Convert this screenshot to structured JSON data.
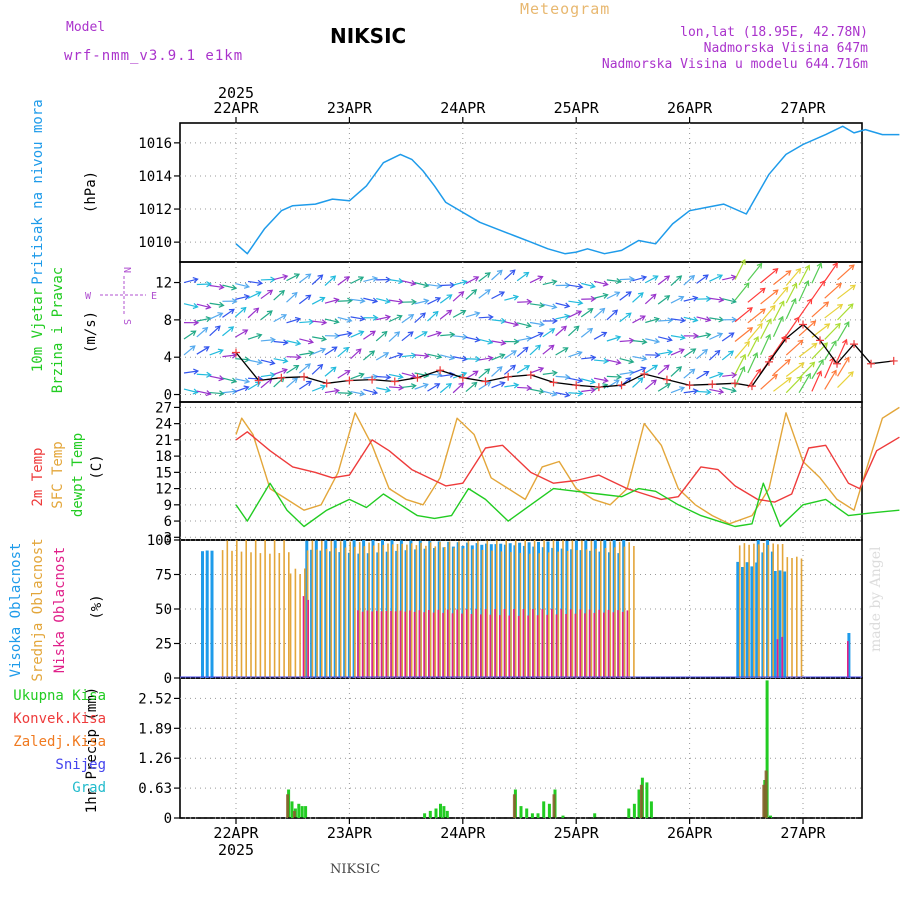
{
  "header": {
    "model_label": "Model",
    "model_value": "wrf-nmm_v3.9.1  e1km",
    "station": "NIKSIC",
    "product": "Meteogram",
    "lonlat": "lon,lat (18.95E, 42.78N)",
    "altitude": "Nadmorska Visina 647m",
    "model_altitude": "Nadmorska Visina u modelu 644.716m",
    "year": "2025",
    "footer_station": "NIKSIC",
    "watermark": "made by Angel"
  },
  "colors": {
    "pressure": "#1e9bea",
    "wind_label": "#22cc22",
    "temp2m": "#ee3b3b",
    "sfc": "#e3a63a",
    "dew": "#22cc22",
    "high_cloud": "#1e9bea",
    "mid_cloud": "#e3a63a",
    "low_cloud": "#e0208a",
    "total_precip": "#22cc22",
    "conv_precip": "#ee3b3b",
    "frozen_precip": "#f07a20",
    "snow": "#4444ee",
    "hail": "#22bbcc",
    "header_purple": "#aa33cc",
    "header_orange": "#e8b870"
  },
  "chart_data": [
    {
      "type": "line",
      "panel": "pressure",
      "x_dates": [
        "22APR",
        "23APR",
        "24APR",
        "25APR",
        "26APR",
        "27APR"
      ],
      "ylabel": [
        "Pritisak na nivou mora",
        "(hPa)"
      ],
      "ylim": [
        1008.8,
        1017.2
      ],
      "yticks": [
        1010,
        1012,
        1014,
        1016
      ],
      "grid": true,
      "series": [
        {
          "x": [
            0,
            0.1,
            0.25,
            0.4,
            0.5,
            0.7,
            0.85,
            1.0,
            1.15,
            1.3,
            1.45,
            1.55,
            1.65,
            1.75,
            1.85,
            1.95,
            2.05,
            2.15,
            2.3,
            2.45,
            2.6,
            2.75,
            2.9,
            3.0,
            3.1,
            3.25,
            3.4,
            3.55,
            3.7,
            3.85,
            4.0,
            4.15,
            4.3,
            4.5,
            4.7,
            4.85,
            5.0,
            5.2,
            5.35,
            5.45,
            5.55,
            5.7,
            5.85
          ],
          "values": [
            1009.9,
            1009.3,
            1010.8,
            1011.9,
            1012.2,
            1012.3,
            1012.6,
            1012.5,
            1013.4,
            1014.8,
            1015.3,
            1015.0,
            1014.3,
            1013.4,
            1012.4,
            1012.0,
            1011.6,
            1011.2,
            1010.8,
            1010.4,
            1010.0,
            1009.6,
            1009.3,
            1009.4,
            1009.6,
            1009.3,
            1009.5,
            1010.1,
            1009.9,
            1011.1,
            1011.9,
            1012.1,
            1012.3,
            1011.7,
            1014.1,
            1015.3,
            1015.9,
            1016.5,
            1017.0,
            1016.6,
            1016.8,
            1016.5,
            1016.5
          ]
        }
      ]
    },
    {
      "type": "line",
      "panel": "wind",
      "x_dates": [
        "22APR",
        "23APR",
        "24APR",
        "25APR",
        "26APR",
        "27APR"
      ],
      "ylabel": [
        "10m Vjetar",
        "Brzina i Pravac",
        "(m/s)"
      ],
      "compass": [
        "N",
        "E",
        "S",
        "W"
      ],
      "ylim": [
        -0.8,
        14.2
      ],
      "yticks": [
        0,
        4,
        8,
        12
      ],
      "grid": true,
      "series": [
        {
          "name": "speed",
          "x": [
            0,
            0.2,
            0.4,
            0.6,
            0.8,
            1.0,
            1.2,
            1.4,
            1.6,
            1.8,
            2.0,
            2.2,
            2.4,
            2.6,
            2.8,
            3.0,
            3.2,
            3.4,
            3.6,
            3.8,
            4.0,
            4.2,
            4.4,
            4.55,
            4.7,
            4.85,
            5.0,
            5.15,
            5.3,
            5.45,
            5.6,
            5.8
          ],
          "values": [
            4.5,
            1.5,
            1.8,
            1.9,
            1.2,
            1.5,
            1.6,
            1.4,
            1.8,
            2.6,
            1.8,
            1.4,
            1.9,
            2.1,
            1.3,
            1.0,
            0.8,
            1.0,
            2.2,
            1.6,
            1.0,
            1.1,
            1.2,
            0.9,
            3.5,
            6.0,
            7.5,
            5.8,
            3.3,
            5.4,
            3.3,
            3.6
          ]
        }
      ]
    },
    {
      "type": "line",
      "panel": "temperature",
      "x_dates": [
        "22APR",
        "23APR",
        "24APR",
        "25APR",
        "26APR",
        "27APR"
      ],
      "ylabel": [
        "2m Temp",
        "SFC Temp",
        "dewpt Temp",
        "(C)"
      ],
      "ylim": [
        2.5,
        28
      ],
      "yticks": [
        3,
        6,
        9,
        12,
        15,
        18,
        21,
        24,
        27
      ],
      "grid": true,
      "series": [
        {
          "name": "2m Temp",
          "x": [
            0,
            0.1,
            0.3,
            0.5,
            0.7,
            0.85,
            1.0,
            1.2,
            1.35,
            1.55,
            1.7,
            1.85,
            2.0,
            2.2,
            2.35,
            2.6,
            2.8,
            3.0,
            3.2,
            3.45,
            3.6,
            3.75,
            3.9,
            4.1,
            4.25,
            4.4,
            4.6,
            4.75,
            4.9,
            5.05,
            5.2,
            5.4,
            5.5,
            5.65,
            5.85
          ],
          "values": [
            21,
            22.5,
            19,
            16,
            15,
            14,
            14.5,
            21,
            19,
            15.5,
            14,
            12.5,
            13,
            19.5,
            20,
            15,
            13,
            13.5,
            14.5,
            12,
            11,
            10,
            10.5,
            16,
            15.5,
            12.5,
            10,
            9.5,
            11,
            19.5,
            20,
            13,
            12,
            19,
            21.5
          ]
        },
        {
          "name": "SFC Temp",
          "x": [
            0,
            0.05,
            0.15,
            0.3,
            0.45,
            0.6,
            0.75,
            0.9,
            1.05,
            1.2,
            1.35,
            1.5,
            1.65,
            1.8,
            1.95,
            2.1,
            2.25,
            2.4,
            2.55,
            2.7,
            2.85,
            3.0,
            3.15,
            3.3,
            3.45,
            3.6,
            3.75,
            3.9,
            4.05,
            4.2,
            4.35,
            4.55,
            4.7,
            4.85,
            5.0,
            5.15,
            5.3,
            5.45,
            5.55,
            5.7,
            5.85
          ],
          "values": [
            22,
            25,
            22,
            12,
            10,
            8,
            9,
            15,
            26,
            20,
            12,
            10,
            9,
            14,
            25,
            22,
            14,
            12,
            10,
            16,
            17,
            12,
            10,
            9,
            12,
            24,
            20,
            12,
            9,
            7,
            5.5,
            7,
            12,
            26,
            17,
            14,
            10,
            8,
            15,
            25,
            27
          ]
        },
        {
          "name": "dewpt Temp",
          "x": [
            0,
            0.1,
            0.3,
            0.45,
            0.6,
            0.8,
            1.0,
            1.15,
            1.3,
            1.45,
            1.6,
            1.75,
            1.9,
            2.05,
            2.2,
            2.4,
            2.6,
            2.8,
            3.0,
            3.2,
            3.4,
            3.55,
            3.7,
            3.9,
            4.1,
            4.25,
            4.4,
            4.55,
            4.65,
            4.8,
            5.0,
            5.2,
            5.4,
            5.6,
            5.85
          ],
          "values": [
            9,
            6,
            13,
            8,
            5,
            8,
            10,
            8.5,
            11,
            9,
            7,
            6.5,
            7,
            12,
            10,
            6,
            9,
            12,
            11.5,
            11,
            10.5,
            12,
            11.5,
            9,
            7,
            6,
            5,
            5.5,
            13,
            5,
            9,
            10,
            7,
            7.5,
            8
          ]
        }
      ]
    },
    {
      "type": "bar",
      "panel": "clouds",
      "x_dates": [
        "22APR",
        "23APR",
        "24APR",
        "25APR",
        "26APR",
        "27APR"
      ],
      "ylabel": [
        "Visoka Oblacnost",
        "Srednja Oblacnost",
        "Niska Oblacnost",
        "(%)"
      ],
      "ylim": [
        0,
        100
      ],
      "yticks": [
        0,
        25,
        50,
        75,
        100
      ],
      "grid": true,
      "series": [
        {
          "name": "Visoka Oblacnost",
          "segments": [
            [
              0.15,
              0.25,
              95
            ],
            [
              1.07,
              3.9,
              100
            ],
            [
              4.87,
              5.05,
              85
            ],
            [
              5.05,
              5.2,
              100
            ],
            [
              5.2,
              5.3,
              80
            ],
            [
              5.85,
              5.87,
              35
            ]
          ]
        },
        {
          "name": "Srednja Oblacnost",
          "segments": [
            [
              0.32,
              0.92,
              100
            ],
            [
              0.92,
              1.06,
              80
            ],
            [
              1.07,
              3.95,
              100
            ],
            [
              4.88,
              5.05,
              100
            ],
            [
              5.05,
              5.3,
              100
            ],
            [
              5.3,
              5.43,
              90
            ]
          ]
        },
        {
          "name": "Niska Oblacnost",
          "segments": [
            [
              1.02,
              1.07,
              60
            ],
            [
              1.5,
              3.9,
              50
            ],
            [
              5.2,
              5.25,
              30
            ],
            [
              5.82,
              5.84,
              28
            ]
          ]
        }
      ]
    },
    {
      "type": "bar",
      "panel": "precipitation",
      "x_dates": [
        "22APR",
        "23APR",
        "24APR",
        "25APR",
        "26APR",
        "27APR"
      ],
      "ylabel": [
        "1hr Precip (mm)"
      ],
      "legend": [
        "Ukupna Kisa",
        "Konvek.Kisa",
        "Zaledj.Kisa",
        "Snijeg",
        "Grad"
      ],
      "ylim": [
        0,
        2.95
      ],
      "yticks": [
        0,
        0.63,
        1.26,
        1.89,
        2.52
      ],
      "grid": true,
      "series": [
        {
          "name": "Ukupna Kisa",
          "x": [
            0.9,
            0.93,
            0.96,
            0.99,
            1.02,
            1.05,
            2.1,
            2.15,
            2.2,
            2.24,
            2.27,
            2.3,
            2.9,
            2.95,
            3.0,
            3.05,
            3.1,
            3.15,
            3.2,
            3.25,
            3.32,
            3.6,
            3.9,
            3.95,
            3.99,
            4.02,
            4.06,
            4.1,
            5.1,
            5.12,
            5.15
          ],
          "values": [
            0.6,
            0.35,
            0.2,
            0.3,
            0.25,
            0.25,
            0.1,
            0.15,
            0.2,
            0.3,
            0.25,
            0.15,
            0.6,
            0.25,
            0.2,
            0.1,
            0.1,
            0.35,
            0.3,
            0.6,
            0.05,
            0.1,
            0.2,
            0.3,
            0.6,
            0.85,
            0.75,
            0.35,
            0.8,
            2.9,
            0.05
          ]
        },
        {
          "name": "Konvek.Kisa",
          "x": [
            0.9,
            0.96,
            2.9,
            3.25,
            4.02,
            5.1,
            5.12
          ],
          "values": [
            0.5,
            0.15,
            0.5,
            0.5,
            0.7,
            0.7,
            1.0
          ]
        }
      ]
    }
  ]
}
